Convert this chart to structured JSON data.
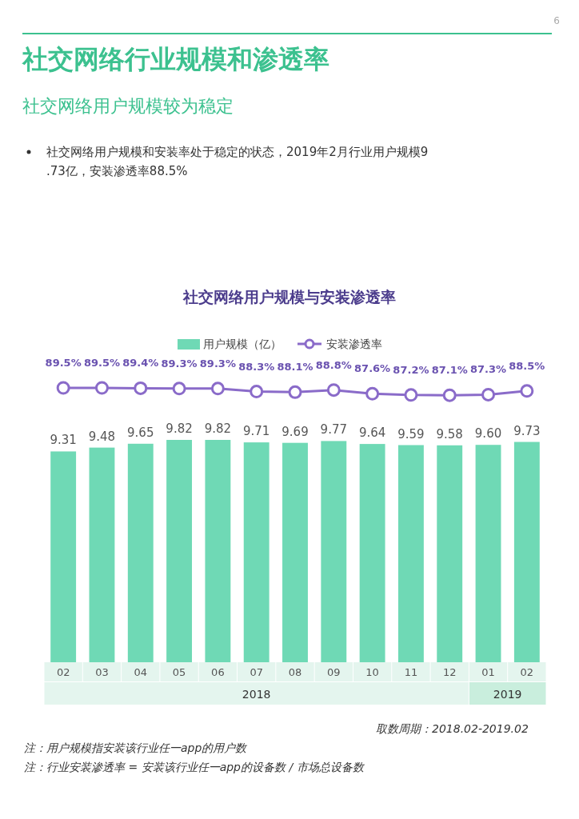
{
  "chart_data": [
    {
      "type": "bar",
      "categories": [
        "02",
        "03",
        "04",
        "05",
        "06",
        "07",
        "08",
        "09",
        "10",
        "11",
        "12",
        "01",
        "02"
      ],
      "legend": "top",
      "series": [
        {
          "name": "用户规模（亿）",
          "color": "#6fd9b5",
          "values": [
            9.31,
            9.48,
            9.65,
            9.82,
            9.82,
            9.71,
            9.69,
            9.77,
            9.64,
            9.59,
            9.58,
            9.6,
            9.73
          ],
          "value_labels": [
            "9.31",
            "9.48",
            "9.65",
            "9.82",
            "9.82",
            "9.71",
            "9.69",
            "9.77",
            "9.64",
            "9.59",
            "9.58",
            "9.60",
            "9.73"
          ]
        }
      ],
      "annotations": [
        "社交网络行业规模和渗透率",
        "社交网络用户规模较为稳定",
        "社交网络用户规模和安装率处于稳定的状态，2019年2月行业用户规模9.73亿，安装渗透率88.5%",
        "取数周期：2018.02-2019.02",
        "注：用户规模指安装该行业任一app的用户数",
        "注：行业安装渗透率 = 安装该行业任一app的设备数 / 市场总设备数",
        "6",
        "2018",
        "2019"
      ]
    },
    {
      "type": "line",
      "title": "社交网络用户规模与安装渗透率",
      "categories": [
        null,
        null,
        null,
        null,
        null,
        null,
        null,
        null,
        null,
        null,
        null,
        null,
        null
      ],
      "tick_labels": false,
      "legend": "top",
      "marker": "circle",
      "series": [
        {
          "name": "安装渗透率",
          "color": "#8a6bc9",
          "values": [
            89.5,
            89.5,
            89.4,
            89.3,
            89.3,
            88.3,
            88.1,
            88.8,
            87.6,
            87.2,
            87.1,
            87.3,
            88.5
          ],
          "value_labels": [
            "89.5%",
            "89.5%",
            "89.4%",
            "89.3%",
            "89.3%",
            "88.3%",
            "88.1%",
            "88.8%",
            "87.6%",
            "87.2%",
            "87.1%",
            "87.3%",
            "88.5%"
          ]
        }
      ]
    }
  ]
}
